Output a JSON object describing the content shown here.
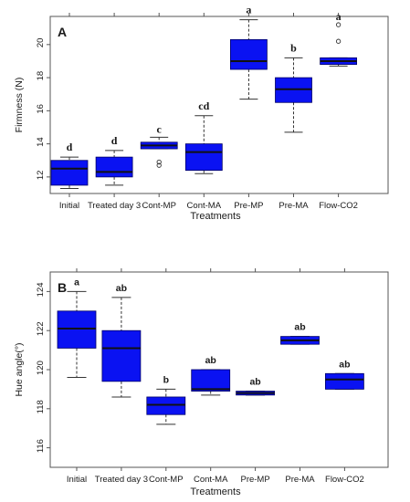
{
  "colors": {
    "box_fill": "#0a12f2",
    "whisker": "#333333",
    "frame": "#555555",
    "text": "#1a1a1a"
  },
  "chart_data": [
    {
      "type": "box",
      "panel_label": "A",
      "xlabel": "Treatments",
      "ylabel": "Firmness (N)",
      "ylim": [
        11,
        21.7
      ],
      "yticks": [
        12,
        14,
        16,
        18,
        20
      ],
      "categories": [
        "Initial",
        "Treated day 3",
        "Cont-MP",
        "Cont-MA",
        "Pre-MP",
        "Pre-MA",
        "Flow-CO2"
      ],
      "boxes": [
        {
          "category": "Initial",
          "min": 11.3,
          "q1": 11.5,
          "median": 12.5,
          "q3": 13.0,
          "max": 13.2,
          "outliers": [],
          "letter": "d"
        },
        {
          "category": "Treated day 3",
          "min": 11.5,
          "q1": 12.0,
          "median": 12.3,
          "q3": 13.2,
          "max": 13.6,
          "outliers": [],
          "letter": "d"
        },
        {
          "category": "Cont-MP",
          "min": 13.7,
          "q1": 13.7,
          "median": 13.9,
          "q3": 14.1,
          "max": 14.4,
          "outliers": [
            12.7,
            12.9
          ],
          "letter": "c"
        },
        {
          "category": "Cont-MA",
          "min": 12.2,
          "q1": 12.4,
          "median": 13.5,
          "q3": 14.0,
          "max": 15.7,
          "outliers": [],
          "letter": "cd"
        },
        {
          "category": "Pre-MP",
          "min": 16.7,
          "q1": 18.5,
          "median": 19.0,
          "q3": 20.3,
          "max": 21.5,
          "outliers": [],
          "letter": "a"
        },
        {
          "category": "Pre-MA",
          "min": 14.7,
          "q1": 16.5,
          "median": 17.3,
          "q3": 18.0,
          "max": 19.2,
          "outliers": [],
          "letter": "b"
        },
        {
          "category": "Flow-CO2",
          "min": 18.7,
          "q1": 18.8,
          "median": 19.0,
          "q3": 19.2,
          "max": 19.2,
          "outliers": [
            20.2,
            21.2
          ],
          "letter": "a"
        }
      ]
    },
    {
      "type": "box",
      "panel_label": "B",
      "xlabel": "Treatments",
      "ylabel": "Hue angle(°)",
      "ylim": [
        115,
        125
      ],
      "yticks": [
        116,
        118,
        120,
        122,
        124
      ],
      "categories": [
        "Initial",
        "Treated day 3",
        "Cont-MP",
        "Cont-MA",
        "Pre-MP",
        "Pre-MA",
        "Flow-CO2"
      ],
      "boxes": [
        {
          "category": "Initial",
          "min": 119.6,
          "q1": 121.1,
          "median": 122.1,
          "q3": 123.0,
          "max": 124.0,
          "outliers": [],
          "letter": "a"
        },
        {
          "category": "Treated day 3",
          "min": 118.6,
          "q1": 119.4,
          "median": 121.1,
          "q3": 122.0,
          "max": 123.7,
          "outliers": [],
          "letter": "ab"
        },
        {
          "category": "Cont-MP",
          "min": 117.2,
          "q1": 117.7,
          "median": 118.2,
          "q3": 118.6,
          "max": 119.0,
          "outliers": [],
          "letter": "b"
        },
        {
          "category": "Cont-MA",
          "min": 118.7,
          "q1": 118.9,
          "median": 119.0,
          "q3": 120.0,
          "max": 120.0,
          "outliers": [],
          "letter": "ab"
        },
        {
          "category": "Pre-MP",
          "min": 118.7,
          "q1": 118.7,
          "median": 118.8,
          "q3": 118.9,
          "max": 118.9,
          "outliers": [],
          "letter": "ab"
        },
        {
          "category": "Pre-MA",
          "min": 121.3,
          "q1": 121.3,
          "median": 121.5,
          "q3": 121.7,
          "max": 121.7,
          "outliers": [],
          "letter": "ab"
        },
        {
          "category": "Flow-CO2",
          "min": 119.0,
          "q1": 119.0,
          "median": 119.5,
          "q3": 119.8,
          "max": 119.8,
          "outliers": [],
          "letter": "ab"
        }
      ]
    }
  ]
}
